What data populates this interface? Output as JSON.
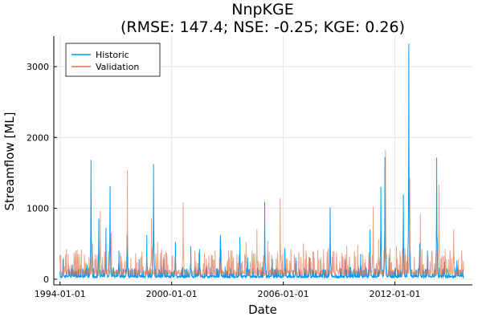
{
  "chart_data": {
    "type": "line",
    "title": "NnpKGE",
    "subtitle": "(RMSE: 147.4; NSE: -0.25; KGE: 0.26)",
    "xlabel": "Date",
    "ylabel": "Streamflow [ML]",
    "xlim": [
      "1993-09-01",
      "2016-03-01"
    ],
    "ylim": [
      -80,
      3430
    ],
    "x_ticks": [
      "1994-01-01",
      "2000-01-01",
      "2006-01-01",
      "2012-01-01"
    ],
    "y_ticks": [
      0,
      1000,
      2000,
      3000
    ],
    "grid": true,
    "legend_position": "top-left",
    "series": [
      {
        "name": "Historic",
        "color": "#009af9",
        "baseline": 40,
        "peaks": [
          [
            "1994-03-01",
            280
          ],
          [
            "1994-09-01",
            200
          ],
          [
            "1995-06-15",
            200
          ],
          [
            "1995-09-01",
            1680
          ],
          [
            "1996-02-01",
            850
          ],
          [
            "1996-06-20",
            720
          ],
          [
            "1996-09-10",
            1310
          ],
          [
            "1997-03-01",
            400
          ],
          [
            "1997-08-10",
            620
          ],
          [
            "1998-04-01",
            280
          ],
          [
            "1998-09-01",
            620
          ],
          [
            "1999-01-10",
            1620
          ],
          [
            "1999-08-01",
            300
          ],
          [
            "2000-03-15",
            520
          ],
          [
            "2001-01-10",
            460
          ],
          [
            "2001-07-01",
            420
          ],
          [
            "2002-08-15",
            620
          ],
          [
            "2003-09-01",
            590
          ],
          [
            "2004-02-01",
            300
          ],
          [
            "2005-01-01",
            1090
          ],
          [
            "2005-06-01",
            280
          ],
          [
            "2006-02-01",
            430
          ],
          [
            "2006-09-01",
            300
          ],
          [
            "2007-06-01",
            300
          ],
          [
            "2008-07-10",
            1010
          ],
          [
            "2009-05-01",
            270
          ],
          [
            "2010-03-01",
            350
          ],
          [
            "2010-09-01",
            700
          ],
          [
            "2011-04-01",
            1300
          ],
          [
            "2011-06-20",
            1720
          ],
          [
            "2011-09-10",
            300
          ],
          [
            "2012-06-15",
            1190
          ],
          [
            "2012-10-01",
            3320
          ],
          [
            "2013-05-01",
            500
          ],
          [
            "2013-10-01",
            400
          ],
          [
            "2014-04-01",
            1710
          ],
          [
            "2014-09-01",
            240
          ],
          [
            "2015-05-01",
            260
          ]
        ]
      },
      {
        "name": "Validation",
        "color": "#e26f46",
        "baseline": 100,
        "peaks": [
          [
            "1994-04-01",
            180
          ],
          [
            "1995-02-01",
            200
          ],
          [
            "1995-10-01",
            500
          ],
          [
            "1996-03-01",
            960
          ],
          [
            "1996-10-01",
            650
          ],
          [
            "1997-04-01",
            350
          ],
          [
            "1997-08-15",
            1540
          ],
          [
            "1998-05-01",
            300
          ],
          [
            "1998-12-01",
            860
          ],
          [
            "1999-04-01",
            520
          ],
          [
            "2000-01-15",
            280
          ],
          [
            "2000-08-15",
            1080
          ],
          [
            "2001-04-01",
            400
          ],
          [
            "2002-01-01",
            330
          ],
          [
            "2002-09-01",
            420
          ],
          [
            "2003-04-01",
            400
          ],
          [
            "2004-01-01",
            520
          ],
          [
            "2004-08-01",
            700
          ],
          [
            "2005-03-01",
            540
          ],
          [
            "2005-11-01",
            1140
          ],
          [
            "2006-06-01",
            420
          ],
          [
            "2007-02-01",
            500
          ],
          [
            "2007-09-01",
            300
          ],
          [
            "2008-03-01",
            420
          ],
          [
            "2008-09-01",
            390
          ],
          [
            "2009-06-01",
            470
          ],
          [
            "2010-01-01",
            480
          ],
          [
            "2010-11-01",
            1020
          ],
          [
            "2011-02-15",
            560
          ],
          [
            "2011-07-01",
            1820
          ],
          [
            "2012-02-01",
            460
          ],
          [
            "2012-10-20",
            1420
          ],
          [
            "2013-05-15",
            920
          ],
          [
            "2014-01-01",
            400
          ],
          [
            "2014-05-15",
            1330
          ],
          [
            "2014-10-01",
            280
          ],
          [
            "2015-03-01",
            700
          ],
          [
            "2015-08-01",
            260
          ]
        ]
      }
    ]
  }
}
